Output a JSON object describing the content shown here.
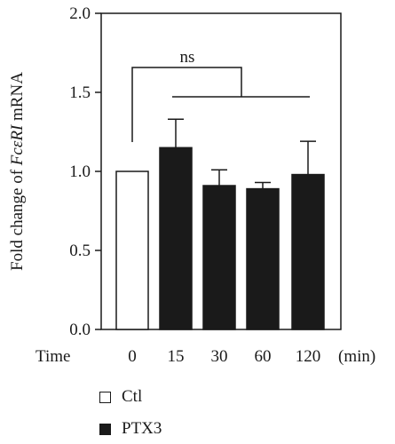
{
  "chart_data": {
    "type": "bar",
    "ylabel_prefix": "Fold change of ",
    "ylabel_italic": "FcεRI",
    "ylabel_suffix": " mRNA",
    "xlabel_left": "Time",
    "xlabel_unit": "(min)",
    "categories": [
      "0",
      "15",
      "30",
      "60",
      "120"
    ],
    "values": [
      1.0,
      1.15,
      0.91,
      0.89,
      0.98
    ],
    "errors": [
      0,
      0.18,
      0.1,
      0.04,
      0.21
    ],
    "groups": [
      "Ctl",
      "PTX3",
      "PTX3",
      "PTX3",
      "PTX3"
    ],
    "ylim": [
      0,
      2.0
    ],
    "yticks": [
      "0.0",
      "0.5",
      "1.0",
      "1.5",
      "2.0"
    ],
    "significance": "ns",
    "legend": [
      {
        "label": "Ctl",
        "fill": "#ffffff"
      },
      {
        "label": "PTX3",
        "fill": "#1a1a1a"
      }
    ],
    "colors": {
      "ctl": "#ffffff",
      "ptx3": "#1a1a1a",
      "axis": "#1a1a1a"
    }
  }
}
